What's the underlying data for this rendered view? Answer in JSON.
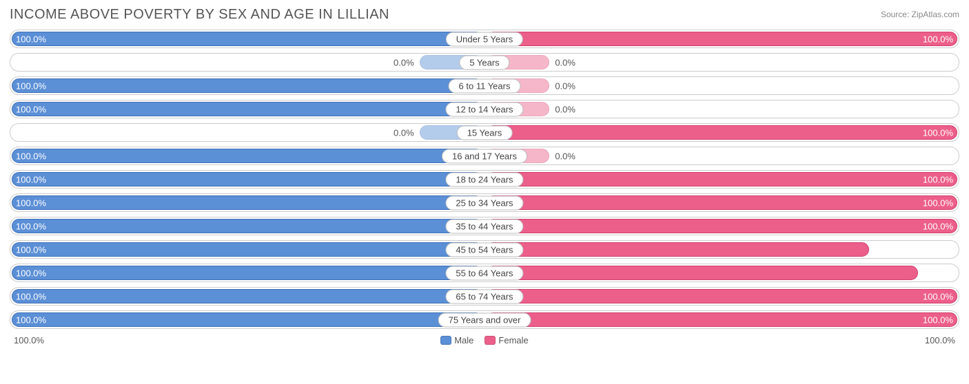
{
  "header": {
    "title": "INCOME ABOVE POVERTY BY SEX AND AGE IN LILLIAN",
    "source": "Source: ZipAtlas.com"
  },
  "chart": {
    "type": "diverging-bar",
    "male_color": "#5b8fd6",
    "male_border": "#3f72b8",
    "female_color": "#ec5f8a",
    "female_border": "#d13f6e",
    "track_border": "#cccccc",
    "background": "#ffffff",
    "label_border": "#bbbbbb",
    "text_dark": "#555555",
    "zero_bar_pct": 14,
    "zero_bar_alpha": 0.45,
    "axis": {
      "left": "100.0%",
      "right": "100.0%"
    },
    "legend": [
      {
        "label": "Male",
        "color": "#5b8fd6"
      },
      {
        "label": "Female",
        "color": "#ec5f8a"
      }
    ],
    "rows": [
      {
        "label": "Under 5 Years",
        "male": 100.0,
        "female": 100.0
      },
      {
        "label": "5 Years",
        "male": 0.0,
        "female": 0.0
      },
      {
        "label": "6 to 11 Years",
        "male": 100.0,
        "female": 0.0
      },
      {
        "label": "12 to 14 Years",
        "male": 100.0,
        "female": 0.0
      },
      {
        "label": "15 Years",
        "male": 0.0,
        "female": 100.0
      },
      {
        "label": "16 and 17 Years",
        "male": 100.0,
        "female": 0.0
      },
      {
        "label": "18 to 24 Years",
        "male": 100.0,
        "female": 100.0
      },
      {
        "label": "25 to 34 Years",
        "male": 100.0,
        "female": 100.0
      },
      {
        "label": "35 to 44 Years",
        "male": 100.0,
        "female": 100.0
      },
      {
        "label": "45 to 54 Years",
        "male": 100.0,
        "female": 81.4
      },
      {
        "label": "55 to 64 Years",
        "male": 100.0,
        "female": 91.7
      },
      {
        "label": "65 to 74 Years",
        "male": 100.0,
        "female": 100.0
      },
      {
        "label": "75 Years and over",
        "male": 100.0,
        "female": 100.0
      }
    ]
  }
}
